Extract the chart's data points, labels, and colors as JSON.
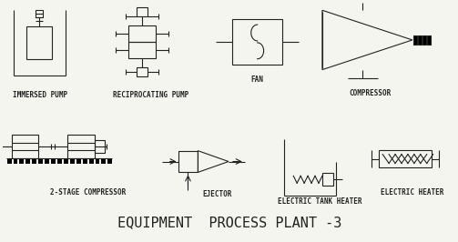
{
  "title": "EQUIPMENT  PROCESS PLANT -3",
  "background_color": "#f5f5f0",
  "line_color": "#222222",
  "labels": {
    "immersed_pump": "IMMERSED PUMP",
    "reciprocating_pump": "RECIPROCATING PUMP",
    "fan": "FAN",
    "compressor": "COMPRESSOR",
    "two_stage": "2-STAGE COMPRESSOR",
    "ejector": "EJECTOR",
    "electric_tank": "ELECTRIC TANK HEATER",
    "electric_heater": "ELECTRIC HEATER"
  },
  "label_fontsize": 5.5,
  "title_fontsize": 11
}
